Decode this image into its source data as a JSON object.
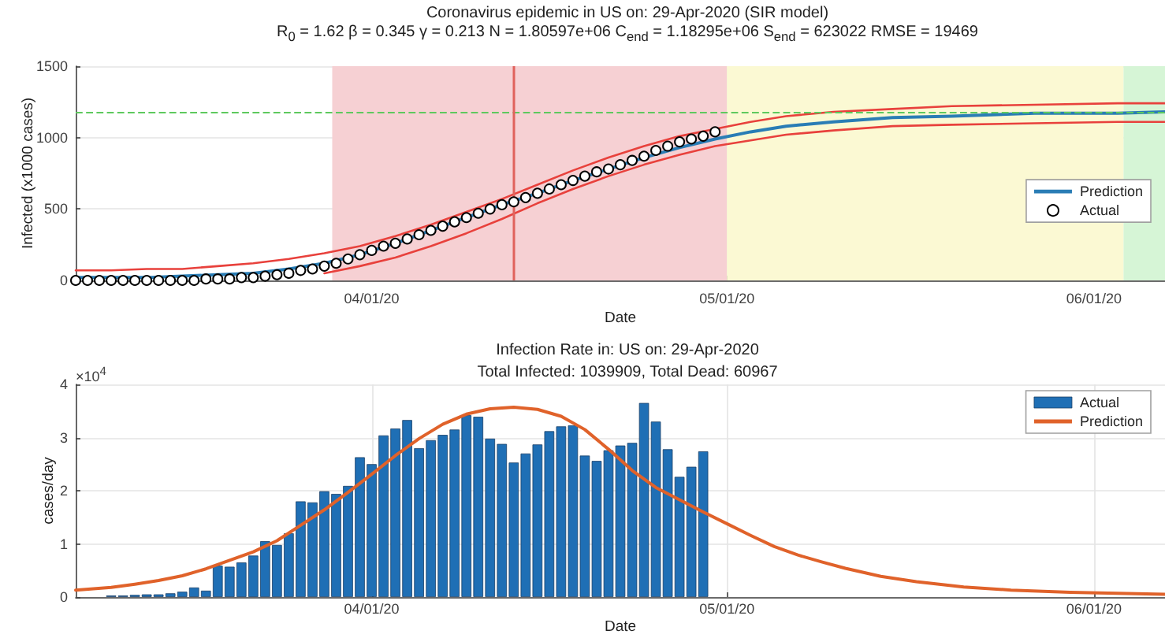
{
  "chart_data": [
    {
      "type": "line",
      "title": "Coronavirus epidemic in US on: 29-Apr-2020 (SIR model)",
      "subtitle": "R$_{0}$ = 1.62 β = 0.345 γ = 0.213 N = 1.80597e+06 C$_{end}$ = 1.18295e+06 S$_{end}$ = 623022 RMSE = 19469",
      "xlabel": "Date",
      "ylabel": "Infected (x1000 cases)",
      "xlim": [
        "2020-03-07",
        "2020-06-07"
      ],
      "xticks": [
        {
          "value": "2020-04-01",
          "label": "04/01/20"
        },
        {
          "value": "2020-05-01",
          "label": "05/01/20"
        },
        {
          "value": "2020-06-01",
          "label": "06/01/20"
        }
      ],
      "ylim": [
        0,
        1500
      ],
      "yticks": [
        0,
        500,
        1000,
        1500
      ],
      "grid": true,
      "legend": "right",
      "series": [
        {
          "color": "#e8413c",
          "x": [
            "2020-03-07",
            "2020-03-10",
            "2020-03-13",
            "2020-03-16",
            "2020-03-19",
            "2020-03-22",
            "2020-03-25",
            "2020-03-28",
            "2020-03-31",
            "2020-04-03",
            "2020-04-06",
            "2020-04-09",
            "2020-04-12",
            "2020-04-15",
            "2020-04-18",
            "2020-04-21",
            "2020-04-24",
            "2020-04-27",
            "2020-04-30",
            "2020-05-03",
            "2020-05-06",
            "2020-05-10",
            "2020-05-15",
            "2020-05-20",
            "2020-05-27",
            "2020-06-03",
            "2020-06-07"
          ],
          "values": [
            70,
            70,
            80,
            80,
            100,
            120,
            150,
            190,
            240,
            310,
            390,
            480,
            570,
            670,
            770,
            860,
            940,
            1010,
            1060,
            1110,
            1150,
            1180,
            1200,
            1220,
            1230,
            1240,
            1240
          ]
        },
        {
          "color": "#e8413c",
          "x": [
            "2020-03-28",
            "2020-03-31",
            "2020-04-03",
            "2020-04-06",
            "2020-04-09",
            "2020-04-12",
            "2020-04-15",
            "2020-04-18",
            "2020-04-21",
            "2020-04-24",
            "2020-04-27",
            "2020-04-30",
            "2020-05-03",
            "2020-05-06",
            "2020-05-10",
            "2020-05-15",
            "2020-05-20",
            "2020-05-27",
            "2020-06-03",
            "2020-06-07"
          ],
          "values": [
            50,
            100,
            160,
            240,
            330,
            430,
            540,
            640,
            730,
            810,
            880,
            940,
            980,
            1020,
            1050,
            1080,
            1090,
            1100,
            1110,
            1110
          ]
        },
        {
          "name": "Prediction",
          "color": "#2a7db5",
          "x": [
            "2020-03-07",
            "2020-03-10",
            "2020-03-13",
            "2020-03-16",
            "2020-03-19",
            "2020-03-22",
            "2020-03-25",
            "2020-03-28",
            "2020-03-31",
            "2020-04-03",
            "2020-04-06",
            "2020-04-09",
            "2020-04-12",
            "2020-04-15",
            "2020-04-18",
            "2020-04-21",
            "2020-04-24",
            "2020-04-27",
            "2020-04-30",
            "2020-05-03",
            "2020-05-06",
            "2020-05-10",
            "2020-05-15",
            "2020-05-20",
            "2020-05-27",
            "2020-06-03",
            "2020-06-07"
          ],
          "values": [
            20,
            20,
            20,
            30,
            40,
            50,
            80,
            120,
            180,
            260,
            350,
            440,
            530,
            610,
            700,
            780,
            860,
            930,
            990,
            1040,
            1080,
            1110,
            1140,
            1150,
            1170,
            1170,
            1180
          ]
        },
        {
          "name": "Actual",
          "type": "scatter",
          "marker": "circle",
          "color": "#000000",
          "x": [
            "2020-03-07",
            "2020-03-08",
            "2020-03-09",
            "2020-03-10",
            "2020-03-11",
            "2020-03-12",
            "2020-03-13",
            "2020-03-14",
            "2020-03-15",
            "2020-03-16",
            "2020-03-17",
            "2020-03-18",
            "2020-03-19",
            "2020-03-20",
            "2020-03-21",
            "2020-03-22",
            "2020-03-23",
            "2020-03-24",
            "2020-03-25",
            "2020-03-26",
            "2020-03-27",
            "2020-03-28",
            "2020-03-29",
            "2020-03-30",
            "2020-03-31",
            "2020-04-01",
            "2020-04-02",
            "2020-04-03",
            "2020-04-04",
            "2020-04-05",
            "2020-04-06",
            "2020-04-07",
            "2020-04-08",
            "2020-04-09",
            "2020-04-10",
            "2020-04-11",
            "2020-04-12",
            "2020-04-13",
            "2020-04-14",
            "2020-04-15",
            "2020-04-16",
            "2020-04-17",
            "2020-04-18",
            "2020-04-19",
            "2020-04-20",
            "2020-04-21",
            "2020-04-22",
            "2020-04-23",
            "2020-04-24",
            "2020-04-25",
            "2020-04-26",
            "2020-04-27",
            "2020-04-28",
            "2020-04-29",
            "2020-04-30"
          ],
          "values": [
            0,
            0,
            0,
            0,
            0,
            0,
            0,
            0,
            0,
            0,
            0,
            10,
            10,
            10,
            20,
            20,
            30,
            40,
            50,
            70,
            80,
            100,
            120,
            150,
            180,
            210,
            240,
            260,
            290,
            320,
            350,
            380,
            410,
            440,
            470,
            500,
            530,
            550,
            580,
            610,
            640,
            670,
            700,
            730,
            760,
            780,
            810,
            840,
            870,
            910,
            940,
            970,
            990,
            1010,
            1040
          ]
        }
      ],
      "ref_lines": [
        {
          "axis": "y",
          "value": 1180,
          "color": "#5ec95e",
          "line_style": "dashed"
        },
        {
          "axis": "x",
          "value": "2020-04-13",
          "color": "#e0625c"
        }
      ],
      "bands": [
        {
          "axis": "x",
          "from": "2020-03-28T16:00",
          "to": "2020-05-01",
          "color": "#f6d0d3"
        },
        {
          "axis": "x",
          "from": "2020-05-01",
          "to": "2020-06-03T12:00",
          "color": "#fbf9d3"
        },
        {
          "axis": "x",
          "from": "2020-06-03T12:00",
          "to": "2020-06-07",
          "color": "#d6f5d6"
        }
      ]
    },
    {
      "type": "bar",
      "title": "Infection Rate in: US on: 29-Apr-2020",
      "subtitle": "Total Infected: 1039909, Total Dead: 60967",
      "xlabel": "Date",
      "ylabel": "cases/day",
      "annotations": [
        "×10$^{4}$"
      ],
      "xlim": [
        "2020-03-07",
        "2020-06-07"
      ],
      "xticks": [
        {
          "value": "2020-04-01",
          "label": "04/01/20"
        },
        {
          "value": "2020-05-01",
          "label": "05/01/20"
        },
        {
          "value": "2020-06-01",
          "label": "06/01/20"
        }
      ],
      "ylim": [
        0,
        4
      ],
      "yticks": [
        0,
        1,
        2,
        3,
        4
      ],
      "grid": true,
      "legend": "top right",
      "series": [
        {
          "name": "Actual",
          "color": "#1f6fb5",
          "x": [
            "2020-03-10",
            "2020-03-11",
            "2020-03-12",
            "2020-03-13",
            "2020-03-14",
            "2020-03-15",
            "2020-03-16",
            "2020-03-17",
            "2020-03-18",
            "2020-03-19",
            "2020-03-20",
            "2020-03-21",
            "2020-03-22",
            "2020-03-23",
            "2020-03-24",
            "2020-03-25",
            "2020-03-26",
            "2020-03-27",
            "2020-03-28",
            "2020-03-29",
            "2020-03-30",
            "2020-03-31",
            "2020-04-01",
            "2020-04-02",
            "2020-04-03",
            "2020-04-04",
            "2020-04-05",
            "2020-04-06",
            "2020-04-07",
            "2020-04-08",
            "2020-04-09",
            "2020-04-10",
            "2020-04-11",
            "2020-04-12",
            "2020-04-13",
            "2020-04-14",
            "2020-04-15",
            "2020-04-16",
            "2020-04-17",
            "2020-04-18",
            "2020-04-19",
            "2020-04-20",
            "2020-04-21",
            "2020-04-22",
            "2020-04-23",
            "2020-04-24",
            "2020-04-25",
            "2020-04-26",
            "2020-04-27",
            "2020-04-28",
            "2020-04-29"
          ],
          "values": [
            0.03,
            0.03,
            0.04,
            0.05,
            0.05,
            0.07,
            0.1,
            0.18,
            0.12,
            0.59,
            0.57,
            0.65,
            0.78,
            1.05,
            0.98,
            1.2,
            1.8,
            1.78,
            1.99,
            1.94,
            2.09,
            2.63,
            2.5,
            3.04,
            3.17,
            3.33,
            2.8,
            2.95,
            3.05,
            3.15,
            3.42,
            3.39,
            2.98,
            2.88,
            2.53,
            2.7,
            2.87,
            3.12,
            3.21,
            3.23,
            2.66,
            2.56,
            2.76,
            2.85,
            2.9,
            3.65,
            3.3,
            2.78,
            2.26,
            2.45,
            2.74
          ]
        },
        {
          "name": "Prediction",
          "type": "line",
          "color": "#e0622a",
          "x": [
            "2020-03-07",
            "2020-03-10",
            "2020-03-12",
            "2020-03-14",
            "2020-03-16",
            "2020-03-18",
            "2020-03-20",
            "2020-03-22",
            "2020-03-24",
            "2020-03-26",
            "2020-03-28",
            "2020-03-30",
            "2020-04-01",
            "2020-04-03",
            "2020-04-05",
            "2020-04-07",
            "2020-04-09",
            "2020-04-11",
            "2020-04-13",
            "2020-04-15",
            "2020-04-17",
            "2020-04-19",
            "2020-04-21",
            "2020-04-23",
            "2020-04-25",
            "2020-04-27",
            "2020-04-29",
            "2020-05-01",
            "2020-05-03",
            "2020-05-05",
            "2020-05-07",
            "2020-05-09",
            "2020-05-11",
            "2020-05-14",
            "2020-05-17",
            "2020-05-21",
            "2020-05-25",
            "2020-05-30",
            "2020-06-03",
            "2020-06-07"
          ],
          "values": [
            0.13,
            0.18,
            0.24,
            0.31,
            0.4,
            0.53,
            0.69,
            0.85,
            1.06,
            1.35,
            1.64,
            1.97,
            2.31,
            2.66,
            2.98,
            3.25,
            3.44,
            3.54,
            3.57,
            3.53,
            3.4,
            3.15,
            2.78,
            2.38,
            2.06,
            1.83,
            1.6,
            1.38,
            1.16,
            0.95,
            0.79,
            0.66,
            0.54,
            0.39,
            0.29,
            0.19,
            0.13,
            0.09,
            0.07,
            0.05
          ]
        }
      ]
    }
  ]
}
